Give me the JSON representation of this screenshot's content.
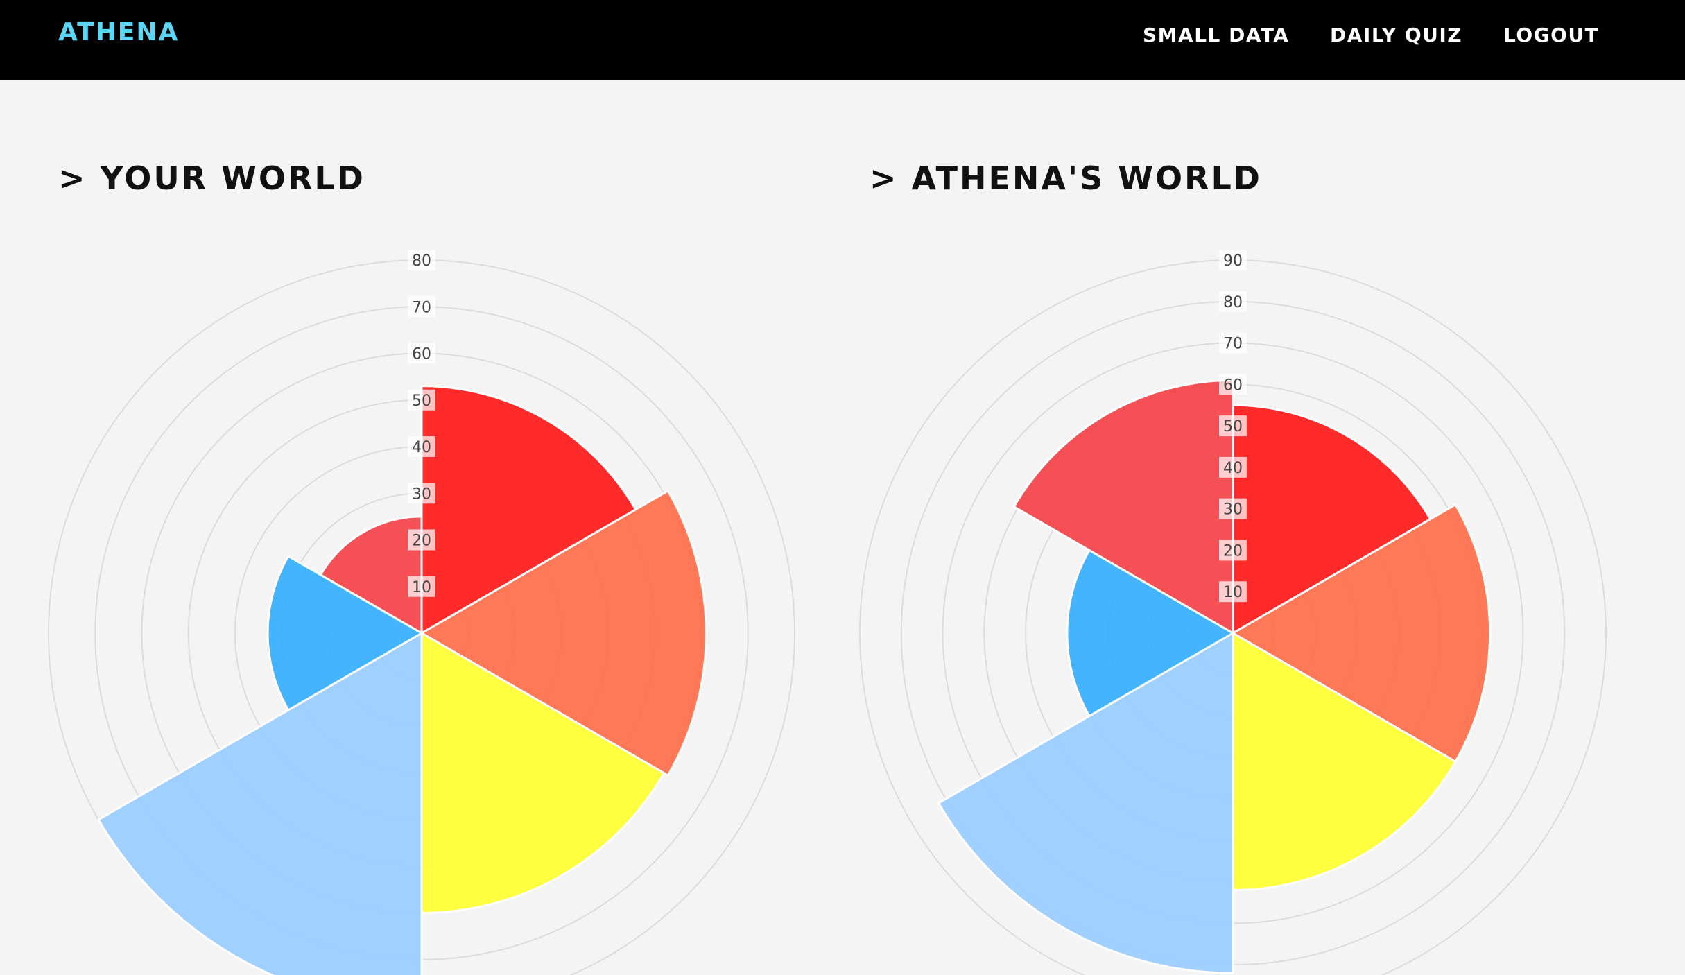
{
  "nav": {
    "brand": "ATHENA",
    "items": [
      "SMALL DATA",
      "DAILY QUIZ",
      "LOGOUT"
    ]
  },
  "sections": {
    "left_title": "> YOUR WORLD",
    "right_title": "> ATHENA'S WORLD"
  },
  "colors": {
    "navbar_bg": "#000000",
    "brand": "#5dd6f5",
    "page_bg": "#f4f4f4",
    "slices": [
      "#ff1a1a",
      "#ff6e4a",
      "#ffff33",
      "#99ccff",
      "#36aeff",
      "#f5434a"
    ]
  },
  "chart_data": [
    {
      "type": "polar-area",
      "title": "> YOUR WORLD",
      "rlim": [
        0,
        80
      ],
      "ticks": [
        10,
        20,
        30,
        40,
        50,
        60,
        70,
        80
      ],
      "values": [
        53,
        61,
        60,
        80,
        33,
        25
      ],
      "grid": true
    },
    {
      "type": "polar-area",
      "title": "> ATHENA'S WORLD",
      "rlim": [
        0,
        90
      ],
      "ticks": [
        10,
        20,
        30,
        40,
        50,
        60,
        70,
        80,
        90
      ],
      "values": [
        55,
        62,
        62,
        82,
        40,
        61
      ],
      "grid": true
    }
  ]
}
